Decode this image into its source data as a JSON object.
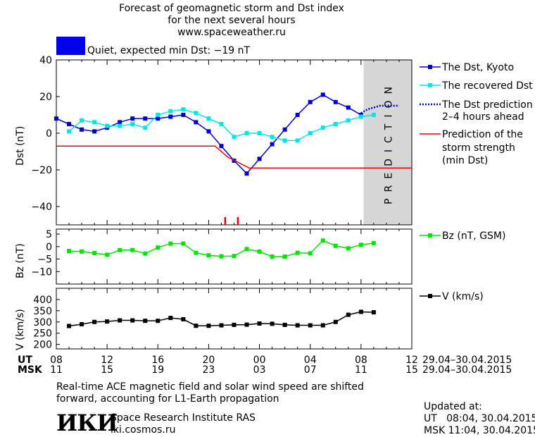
{
  "header": {
    "title_line1": "Forecast of geomagnetic storm and Dst index",
    "title_line2": "for the next several hours",
    "site": "www.spaceweather.ru"
  },
  "status": {
    "swatch_color": "#0000ee",
    "text": "Quiet, expected min Dst: −19 nT"
  },
  "legend": {
    "dst_kyoto": "The Dst, Kyoto",
    "dst_recovered": "The recovered Dst",
    "dst_prediction_1": "The Dst prediction",
    "dst_prediction_2": "2–4 hours ahead",
    "storm_1": "Prediction of the",
    "storm_2": "storm strength",
    "storm_3": "(min Dst)",
    "bz": "Bz (nT, GSM)",
    "v": "V (km/s)"
  },
  "prediction_label": "PREDICTION",
  "axes": {
    "dst_ylabel": "Dst (nT)",
    "bz_ylabel": "Bz (nT)",
    "v_ylabel": "V (km/s)",
    "ut_label": "UT",
    "msk_label": "MSK",
    "ut_ticks": [
      "08",
      "12",
      "16",
      "20",
      "00",
      "04",
      "08",
      "12"
    ],
    "msk_ticks": [
      "11",
      "15",
      "19",
      "23",
      "03",
      "07",
      "11",
      "15"
    ],
    "date_range_ut": "29.04–30.04.2015",
    "date_range_msk": "29.04–30.04.2015"
  },
  "note": {
    "line1": "Real-time ACE magnetic field and solar wind speed are shifted",
    "line2": "forward, accounting for L1-Earth propagation"
  },
  "institute": {
    "logo_text": "ИКИ",
    "name": "Space Research Institute RAS",
    "site": "iki.cosmos.ru"
  },
  "updated": {
    "label": "Updated at:",
    "ut": "UT   08:04, 30.04.2015",
    "msk": "MSK 11:04, 30.04.2015"
  },
  "chart_data": [
    {
      "type": "line",
      "x_unit": "hours from 08 UT 29.04.2015",
      "xlim": [
        0,
        28
      ],
      "ylabel": "Dst (nT)",
      "ylim": [
        -50,
        40
      ],
      "yticks": [
        40,
        20,
        0,
        -20,
        -40
      ],
      "prediction_region_x": [
        24.2,
        28
      ],
      "storm_markers_x": [
        13.3,
        14.3
      ],
      "series": [
        {
          "name": "The Dst, Kyoto",
          "color": "#0000cc",
          "marker": "square",
          "x": [
            0,
            1,
            2,
            3,
            4,
            5,
            6,
            7,
            8,
            9,
            10,
            11,
            12,
            13,
            14,
            15,
            16,
            17,
            18,
            19,
            20,
            21,
            22,
            23,
            24
          ],
          "y": [
            8,
            5,
            2,
            1,
            3,
            6,
            8,
            8,
            8,
            9,
            10,
            6,
            1,
            -7,
            -15,
            -22,
            -14,
            -6,
            2,
            10,
            17,
            21,
            17,
            14,
            10
          ]
        },
        {
          "name": "The recovered Dst",
          "color": "#00e6e6",
          "marker": "square",
          "x": [
            1,
            2,
            3,
            4,
            5,
            6,
            7,
            8,
            9,
            10,
            11,
            12,
            13,
            14,
            15,
            16,
            17,
            18,
            19,
            20,
            21,
            22,
            23,
            24,
            25
          ],
          "y": [
            1,
            7,
            6,
            4,
            4,
            5,
            3,
            10,
            12,
            13,
            11,
            8,
            5,
            -2,
            0,
            0,
            -2,
            -4,
            -4,
            0,
            3,
            5,
            7,
            9,
            10
          ]
        },
        {
          "name": "The Dst prediction",
          "color": "#0000cc",
          "style": "dotted",
          "x": [
            24,
            24.5,
            25,
            25.5,
            26,
            26.5,
            27
          ],
          "y": [
            11,
            13,
            14,
            15,
            15,
            15,
            15
          ]
        },
        {
          "name": "Prediction of the storm strength",
          "color": "#ee0000",
          "style": "step",
          "x": [
            0,
            12.5,
            13.5,
            15.2,
            28
          ],
          "y": [
            -7,
            -7,
            -13,
            -19,
            -19
          ]
        }
      ]
    },
    {
      "type": "line",
      "xlim": [
        0,
        28
      ],
      "ylabel": "Bz (nT)",
      "ylim": [
        -15,
        7
      ],
      "yticks": [
        5,
        0,
        -5,
        -10
      ],
      "series": [
        {
          "name": "Bz (nT, GSM)",
          "color": "#00e600",
          "marker": "square",
          "x": [
            1,
            2,
            3,
            4,
            5,
            6,
            7,
            8,
            9,
            10,
            11,
            12,
            13,
            14,
            15,
            16,
            17,
            18,
            19,
            20,
            21,
            22,
            23,
            24,
            25
          ],
          "y": [
            -1.8,
            -2.0,
            -2.6,
            -3.3,
            -1.4,
            -1.4,
            -2.8,
            -0.4,
            1.2,
            1.2,
            -2.5,
            -3.5,
            -3.9,
            -3.8,
            -1.0,
            -2.0,
            -4.0,
            -4.0,
            -2.5,
            -2.7,
            2.4,
            0.3,
            -0.7,
            0.7,
            1.4
          ]
        }
      ]
    },
    {
      "type": "line",
      "xlim": [
        0,
        28
      ],
      "ylabel": "V (km/s)",
      "ylim": [
        180,
        450
      ],
      "yticks": [
        400,
        350,
        300,
        250,
        200
      ],
      "series": [
        {
          "name": "V (km/s)",
          "color": "#000000",
          "marker": "square",
          "x": [
            1,
            2,
            3,
            4,
            5,
            6,
            7,
            8,
            9,
            10,
            11,
            12,
            13,
            14,
            15,
            16,
            17,
            18,
            19,
            20,
            21,
            22,
            23,
            24,
            25
          ],
          "y": [
            282,
            290,
            300,
            302,
            307,
            307,
            305,
            305,
            318,
            312,
            283,
            283,
            285,
            287,
            288,
            293,
            292,
            287,
            285,
            285,
            285,
            300,
            332,
            345,
            343
          ]
        }
      ]
    }
  ]
}
